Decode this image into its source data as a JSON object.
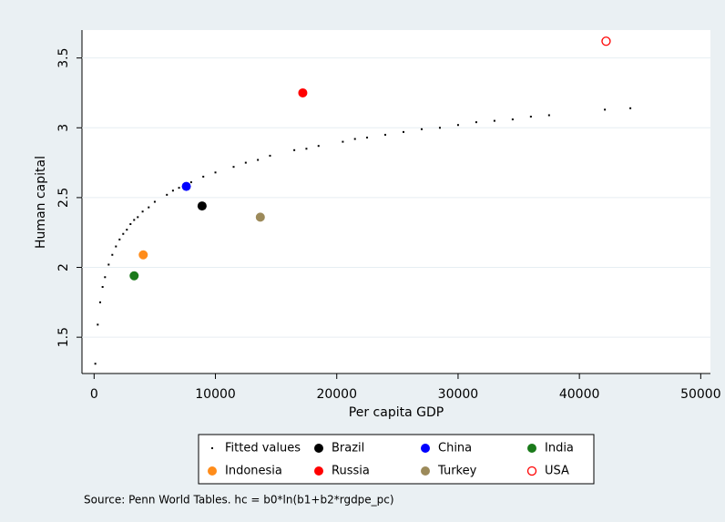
{
  "chart_data": {
    "type": "scatter",
    "x_label": "Per capita GDP",
    "y_label": "Human capital",
    "note": "Source: Penn World Tables. hc = b0*ln(b1+b2*rgdpe_pc)",
    "xlim": [
      -1000,
      50800
    ],
    "ylim": [
      1.24,
      3.7
    ],
    "xticks": [
      0,
      10000,
      20000,
      30000,
      40000,
      50000
    ],
    "yticks": [
      1.5,
      2,
      2.5,
      3,
      3.5
    ],
    "grid": true,
    "legend": "bottom",
    "series": [
      {
        "name": "Fitted values",
        "color": "#000000",
        "marker": "dot",
        "x": [
          100,
          300,
          500,
          700,
          900,
          1200,
          1500,
          1800,
          2100,
          2400,
          2700,
          3000,
          3300,
          3600,
          4000,
          4500,
          5000,
          6000,
          6500,
          7000,
          8000,
          9000,
          10000,
          11500,
          12500,
          13500,
          14500,
          16500,
          17500,
          18500,
          20500,
          21500,
          22500,
          24000,
          25500,
          27000,
          28500,
          30000,
          31500,
          33000,
          34500,
          36000,
          37500,
          42100,
          44200
        ],
        "y": [
          1.31,
          1.59,
          1.75,
          1.86,
          1.93,
          2.02,
          2.09,
          2.15,
          2.2,
          2.24,
          2.27,
          2.31,
          2.34,
          2.36,
          2.4,
          2.43,
          2.47,
          2.52,
          2.55,
          2.57,
          2.61,
          2.65,
          2.68,
          2.72,
          2.75,
          2.77,
          2.8,
          2.84,
          2.85,
          2.87,
          2.9,
          2.92,
          2.93,
          2.95,
          2.97,
          2.99,
          3.0,
          3.02,
          3.04,
          3.05,
          3.06,
          3.08,
          3.09,
          3.13,
          3.14
        ]
      },
      {
        "name": "Brazil",
        "color": "#000000",
        "marker": "filled",
        "x": [
          8900
        ],
        "y": [
          2.44
        ]
      },
      {
        "name": "China",
        "color": "#0000ff",
        "marker": "filled",
        "x": [
          7600
        ],
        "y": [
          2.58
        ]
      },
      {
        "name": "India",
        "color": "#1a7a1a",
        "marker": "filled",
        "x": [
          3300
        ],
        "y": [
          1.94
        ]
      },
      {
        "name": "Indonesia",
        "color": "#ff8c1a",
        "marker": "filled",
        "x": [
          4050
        ],
        "y": [
          2.09
        ]
      },
      {
        "name": "Russia",
        "color": "#ff0000",
        "marker": "filled",
        "x": [
          17200
        ],
        "y": [
          3.25
        ]
      },
      {
        "name": "Turkey",
        "color": "#9c8a5a",
        "marker": "filled",
        "x": [
          13700
        ],
        "y": [
          2.36
        ]
      },
      {
        "name": "USA",
        "color": "#ff0000",
        "marker": "hollow",
        "x": [
          42200
        ],
        "y": [
          3.62
        ]
      }
    ]
  }
}
